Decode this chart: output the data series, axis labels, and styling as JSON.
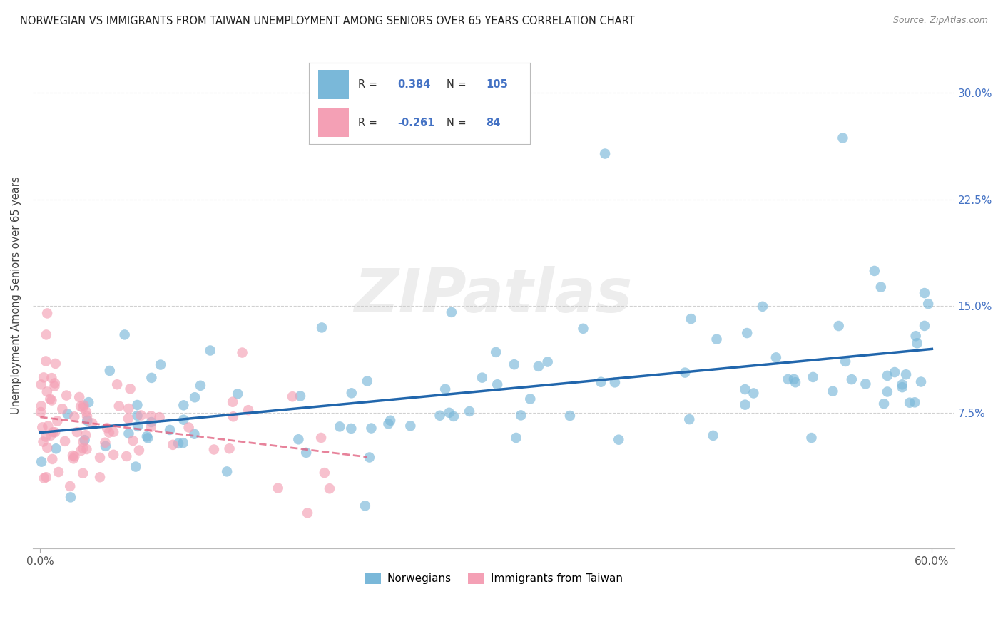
{
  "title": "NORWEGIAN VS IMMIGRANTS FROM TAIWAN UNEMPLOYMENT AMONG SENIORS OVER 65 YEARS CORRELATION CHART",
  "source": "Source: ZipAtlas.com",
  "ylabel": "Unemployment Among Seniors over 65 years",
  "xlim": [
    -0.005,
    0.615
  ],
  "ylim": [
    -0.02,
    0.335
  ],
  "xtick_positions": [
    0.0,
    0.6
  ],
  "xtick_labels": [
    "0.0%",
    "60.0%"
  ],
  "ytick_positions": [
    0.075,
    0.15,
    0.225,
    0.3
  ],
  "ytick_labels": [
    "7.5%",
    "15.0%",
    "22.5%",
    "30.0%"
  ],
  "r_norwegian": 0.384,
  "n_norwegian": 105,
  "r_taiwan": -0.261,
  "n_taiwan": 84,
  "blue_color": "#7ab8d9",
  "pink_color": "#f4a0b5",
  "blue_line_color": "#2166ac",
  "pink_line_color": "#e05a7a",
  "watermark": "ZIPatlas",
  "legend_text_color": "#4472c4",
  "grid_color": "#cccccc",
  "title_color": "#222222",
  "ylabel_color": "#444444"
}
